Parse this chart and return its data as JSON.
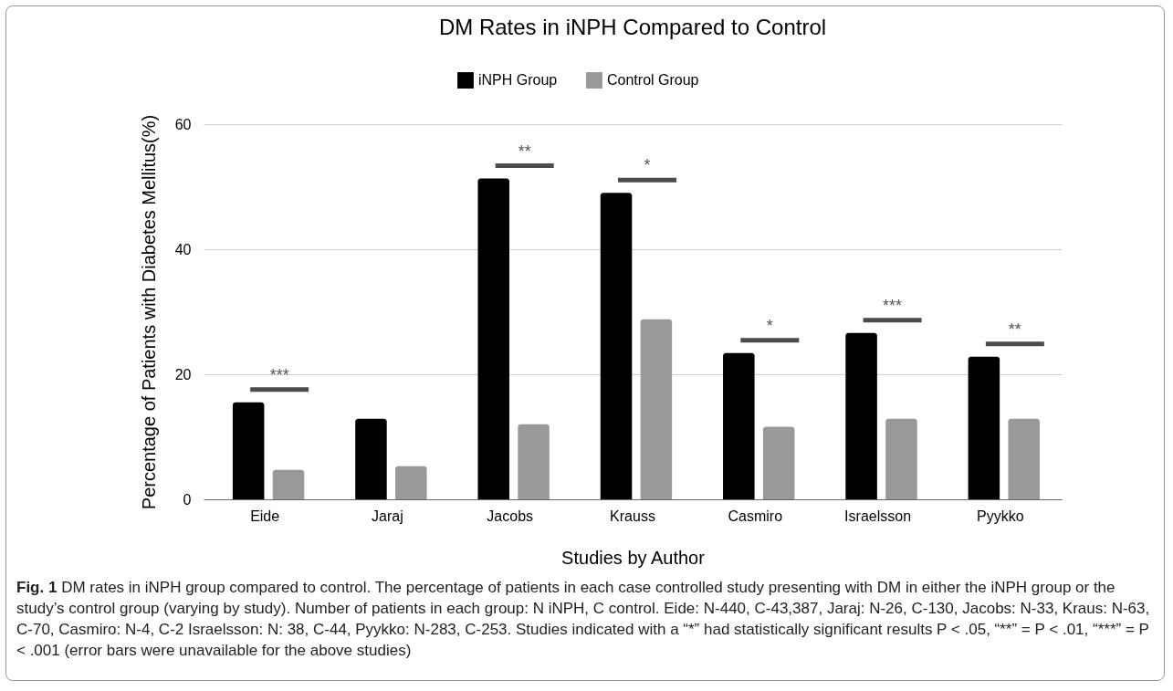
{
  "chart_data": {
    "type": "bar",
    "title": "DM Rates in iNPH Compared to Control",
    "xlabel": "Studies by Author",
    "ylabel": "Percentage of Patients with Diabetes Mellitus(%)",
    "categories": [
      "Eide",
      "Jaraj",
      "Jacobs",
      "Krauss",
      "Casmiro",
      "Israelsson",
      "Pyykko"
    ],
    "series": [
      {
        "name": "iNPH Group",
        "color": "#000000",
        "values": [
          15.5,
          12.9,
          51.3,
          49.0,
          23.4,
          26.6,
          22.8
        ]
      },
      {
        "name": "Control Group",
        "color": "#999999",
        "values": [
          4.7,
          5.3,
          12.0,
          28.8,
          11.6,
          12.9,
          12.9
        ]
      }
    ],
    "ylim": [
      0,
      60
    ],
    "yticks": [
      0,
      20,
      40,
      60
    ],
    "grid": "y",
    "legend": "top",
    "annotations": [
      {
        "text": "***",
        "x": "Eide",
        "y": 15.5
      },
      {
        "text": "**",
        "x": "Jacobs",
        "y": 51.3
      },
      {
        "text": "*",
        "x": "Krauss",
        "y": 49.0
      },
      {
        "text": "*",
        "x": "Casmiro",
        "y": 23.4
      },
      {
        "text": "***",
        "x": "Israelsson",
        "y": 26.6
      },
      {
        "text": "**",
        "x": "Pyykko",
        "y": 22.8
      },
      "Fig. 1  DM rates in iNPH group compared to control. The percentage of patients in each case controlled study presenting with DM in either the iNPH group or the study’s control group (varying by study). Number of patients in each group: N iNPH, C control. Eide: N-440, C-43,387, Jaraj: N-26, C-130, Jacobs: N-33, Kraus: N-63, C-70, Casmiro: N-4, C-2 Israelsson: N: 38, C-44, Pyykko: N-283, C-253. Studies indicated with a “*” had statistically significant results P < .05, “**” = P < .01, “***” = P < .001 (error bars were unavailable for the above studies)"
    ]
  }
}
